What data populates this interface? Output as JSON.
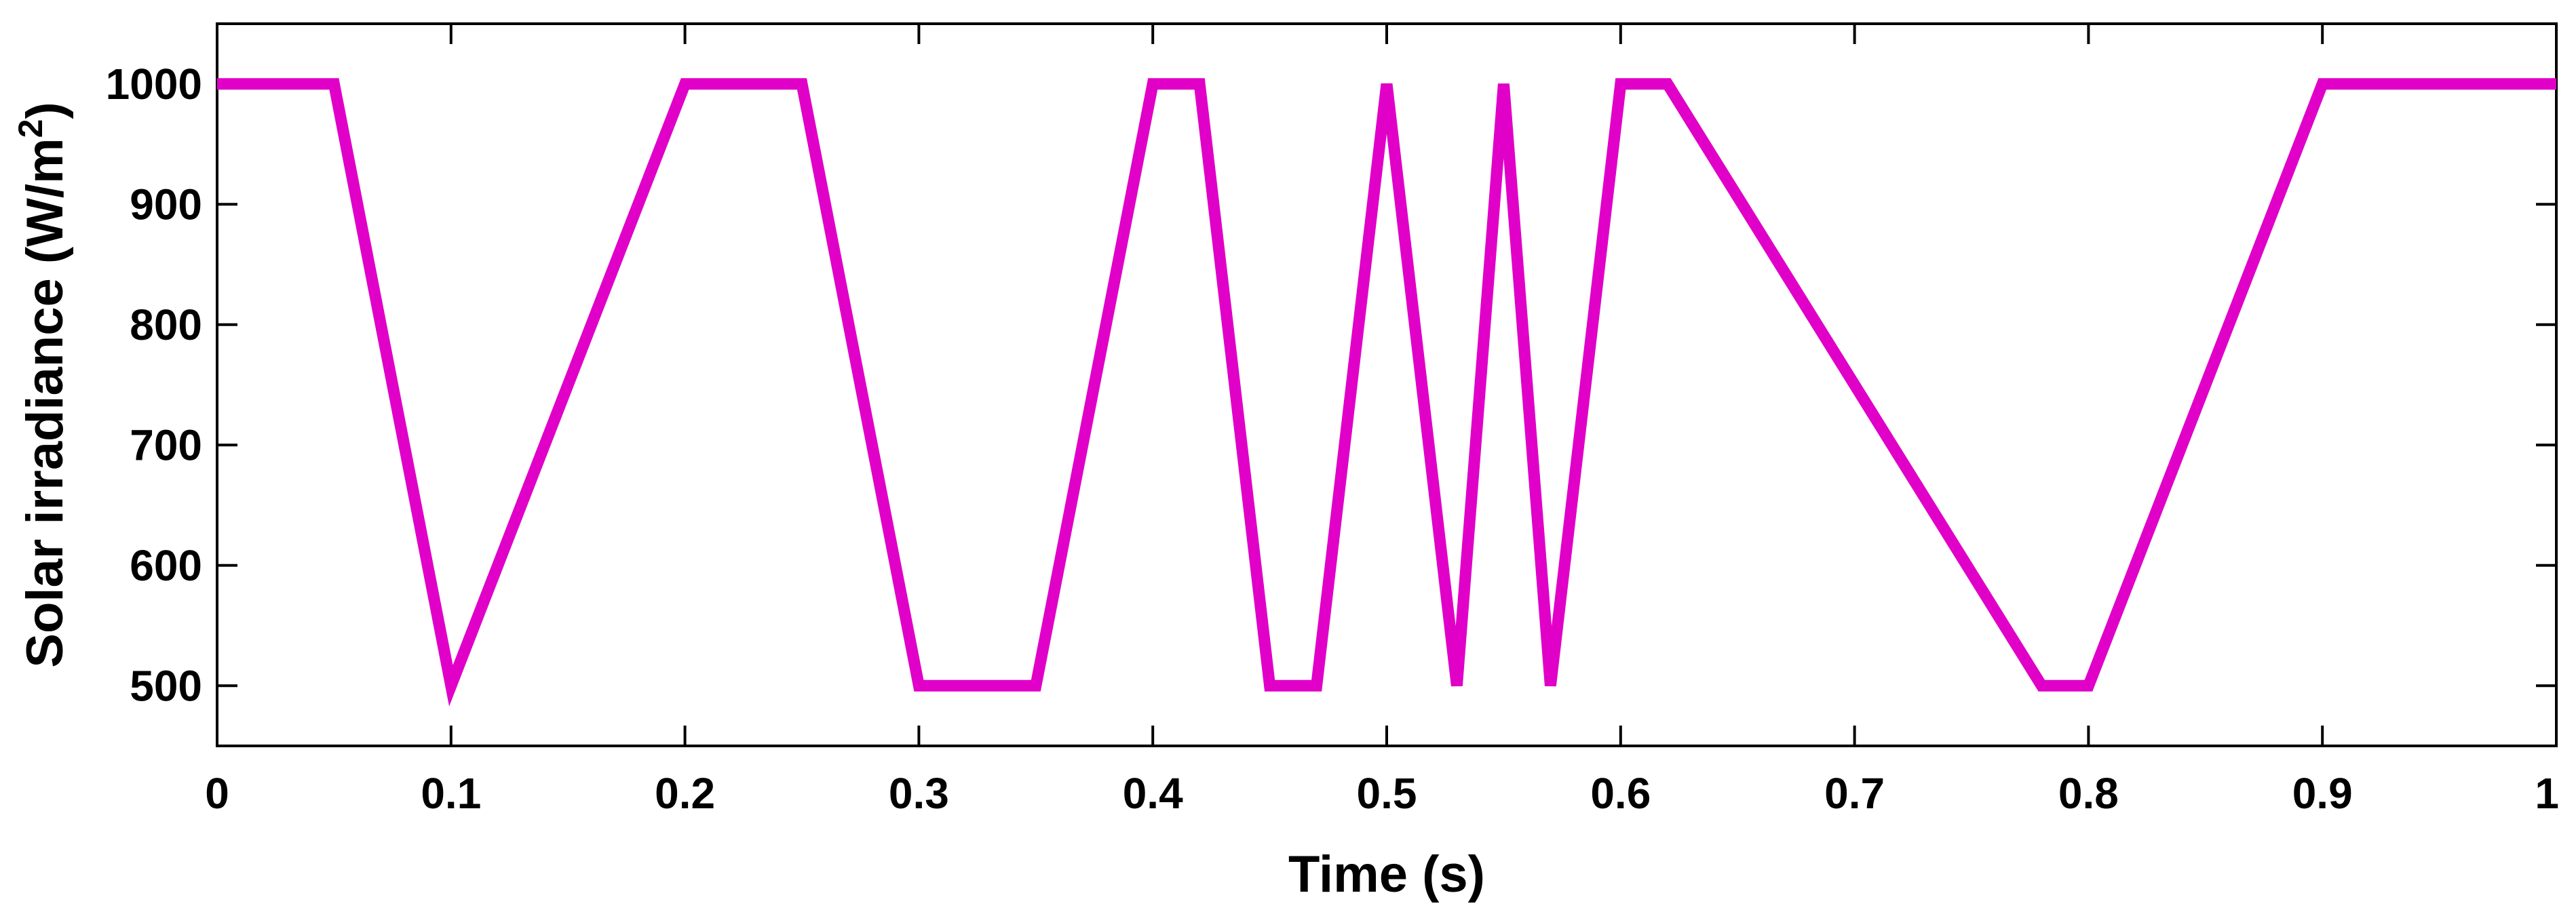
{
  "chart_data": {
    "type": "line",
    "title": "",
    "xlabel": "Time (s)",
    "ylabel_main": "Solar irradiance (W/m",
    "ylabel_sup": "2",
    "ylabel_tail": ")",
    "xlim": [
      0,
      1
    ],
    "ylim": [
      450,
      1050
    ],
    "xticks": [
      0,
      0.1,
      0.2,
      0.3,
      0.4,
      0.5,
      0.6,
      0.7,
      0.8,
      0.9,
      1
    ],
    "xtick_labels": [
      "0",
      "0.1",
      "0.2",
      "0.3",
      "0.4",
      "0.5",
      "0.6",
      "0.7",
      "0.8",
      "0.9",
      "1"
    ],
    "yticks": [
      500,
      600,
      700,
      800,
      900,
      1000
    ],
    "ytick_labels": [
      "500",
      "600",
      "700",
      "800",
      "900",
      "1000"
    ],
    "grid": false,
    "series": [
      {
        "color": "#e000c8",
        "x": [
          0,
          0.05,
          0.1,
          0.2,
          0.25,
          0.3,
          0.35,
          0.4,
          0.42,
          0.45,
          0.47,
          0.5,
          0.53,
          0.55,
          0.57,
          0.6,
          0.62,
          0.78,
          0.8,
          0.9,
          1
        ],
        "y": [
          1000,
          1000,
          500,
          1000,
          1000,
          500,
          500,
          1000,
          1000,
          500,
          500,
          1000,
          500,
          1000,
          500,
          1000,
          1000,
          500,
          500,
          1000,
          1000
        ]
      }
    ]
  }
}
